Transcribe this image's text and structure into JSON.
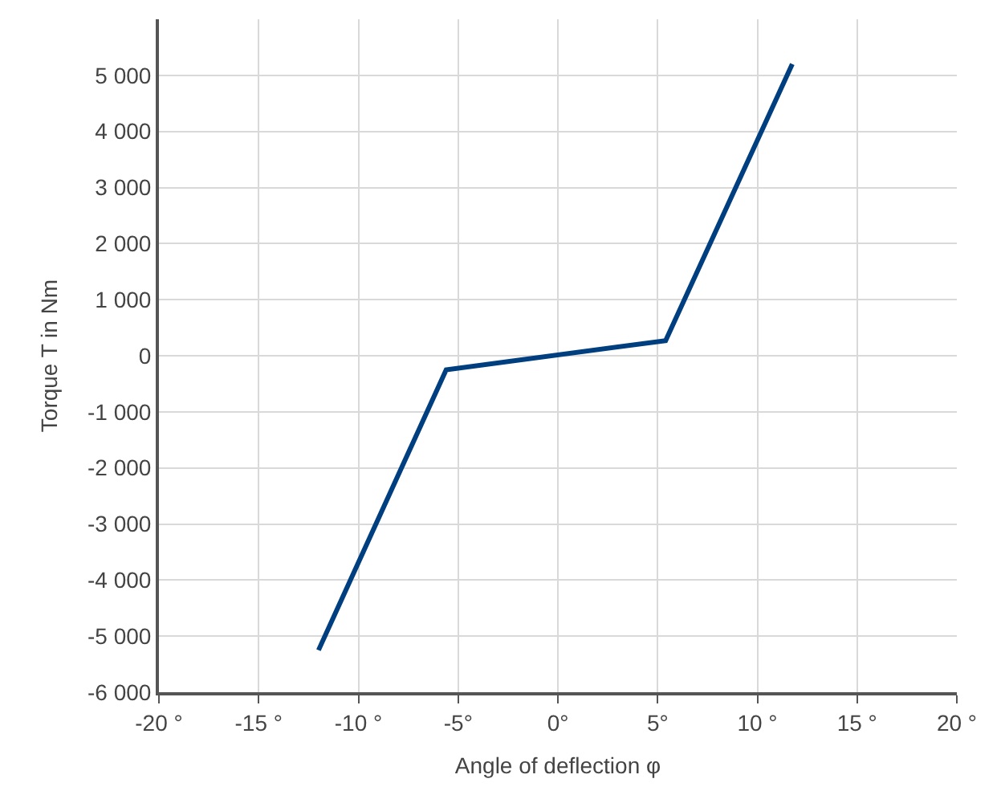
{
  "chart_data": {
    "type": "line",
    "xlabel": "Angle of deflection φ",
    "ylabel": "Torque T in Nm",
    "x": [
      -12,
      -5.6,
      5.4,
      11.75
    ],
    "series": [
      {
        "color": "#003f7f",
        "values": [
          -5250,
          -250,
          270,
          5200
        ]
      }
    ],
    "xlim": [
      -20,
      20
    ],
    "xticks": [
      {
        "value": -20,
        "label": "-20 °"
      },
      {
        "value": -15,
        "label": "-15 °"
      },
      {
        "value": -10,
        "label": "-10 °"
      },
      {
        "value": -5,
        "label": "-5°"
      },
      {
        "value": 0,
        "label": "0°"
      },
      {
        "value": 5,
        "label": "5°"
      },
      {
        "value": 10,
        "label": "10 °"
      },
      {
        "value": 15,
        "label": "15 °"
      },
      {
        "value": 20,
        "label": "20 °"
      }
    ],
    "ylim": [
      -6000,
      6000
    ],
    "yticks": [
      {
        "value": -6000,
        "label": "-6 000"
      },
      {
        "value": -5000,
        "label": "-5 000"
      },
      {
        "value": -4000,
        "label": "-4 000"
      },
      {
        "value": -3000,
        "label": "-3 000"
      },
      {
        "value": -2000,
        "label": "-2 000"
      },
      {
        "value": -1000,
        "label": "-1 000"
      },
      0,
      {
        "value": 1000,
        "label": "1 000"
      },
      {
        "value": 2000,
        "label": "2 000"
      },
      {
        "value": 3000,
        "label": "3 000"
      },
      {
        "value": 4000,
        "label": "4 000"
      },
      {
        "value": 5000,
        "label": "5 000"
      }
    ],
    "grid": true,
    "marker": "none",
    "line_style": "solid"
  }
}
